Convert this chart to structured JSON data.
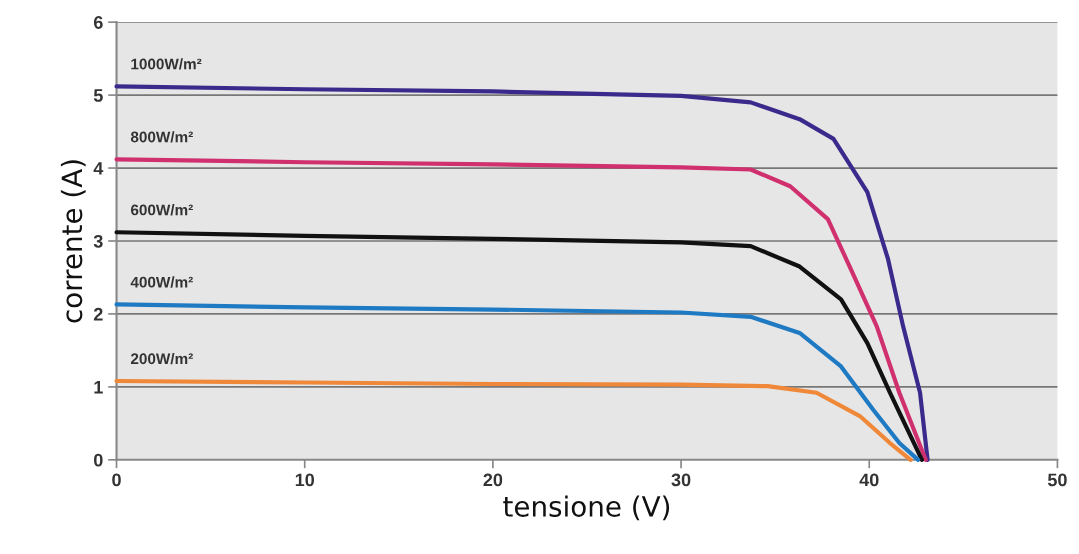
{
  "chart_data": {
    "type": "line",
    "xlabel": "tensione (V)",
    "ylabel": "corrente (A)",
    "xlim": [
      0,
      50
    ],
    "ylim": [
      0,
      6
    ],
    "xticks": [
      0,
      10,
      20,
      30,
      40,
      50
    ],
    "yticks": [
      0,
      1,
      2,
      3,
      4,
      5,
      6
    ],
    "grid": "y",
    "legend": false,
    "marker": "none",
    "line_style": "solid",
    "series": [
      {
        "name": "1000W/m²",
        "color": "#3b2a8c",
        "x": [
          0,
          10,
          20,
          30,
          33.7,
          36.3,
          38.1,
          39.9,
          41.0,
          41.8,
          42.7,
          43.1
        ],
        "values": [
          5.12,
          5.08,
          5.05,
          4.99,
          4.9,
          4.67,
          4.4,
          3.67,
          2.75,
          1.83,
          0.92,
          0
        ]
      },
      {
        "name": "800W/m²",
        "color": "#d0306e",
        "x": [
          0,
          10,
          20,
          30,
          33.7,
          35.8,
          37.8,
          39.1,
          40.4,
          41.6,
          43.0
        ],
        "values": [
          4.12,
          4.08,
          4.05,
          4.01,
          3.98,
          3.75,
          3.3,
          2.57,
          1.83,
          0.92,
          0
        ]
      },
      {
        "name": "600W/m²",
        "color": "#111111",
        "x": [
          0,
          10,
          20,
          30,
          33.7,
          36.3,
          38.5,
          39.9,
          41.1,
          42.8
        ],
        "values": [
          3.12,
          3.07,
          3.03,
          2.98,
          2.93,
          2.65,
          2.2,
          1.6,
          0.92,
          0
        ]
      },
      {
        "name": "400W/m²",
        "color": "#1f7ac4",
        "x": [
          0,
          10,
          20,
          30,
          33.7,
          36.3,
          38.5,
          40.2,
          41.6,
          42.6
        ],
        "values": [
          2.13,
          2.09,
          2.06,
          2.02,
          1.96,
          1.74,
          1.28,
          0.69,
          0.23,
          0
        ]
      },
      {
        "name": "200W/m²",
        "color": "#f0883a",
        "x": [
          0,
          10,
          20,
          30,
          34.6,
          37.2,
          39.5,
          41.1,
          42.2
        ],
        "values": [
          1.08,
          1.06,
          1.04,
          1.03,
          1.01,
          0.92,
          0.6,
          0.23,
          0
        ]
      }
    ]
  }
}
